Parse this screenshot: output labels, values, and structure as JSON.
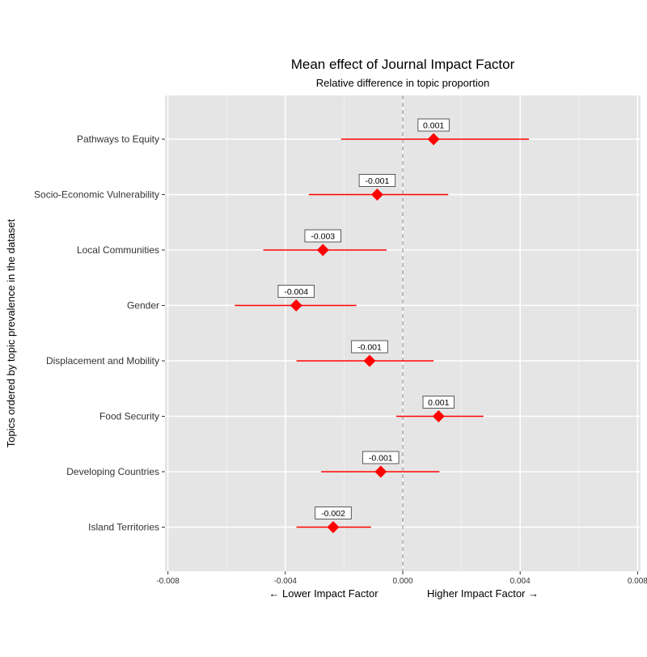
{
  "chart_data": {
    "type": "scatter",
    "title": "Mean effect of Journal Impact Factor",
    "subtitle": "Relative difference in topic proportion",
    "ylabel": "Topics ordered by topic prevalence in the dataset",
    "xlabel_left": "← Lower  Impact Factor",
    "xlabel_right": "Higher Impact Factor →",
    "xlim": [
      -0.0081,
      0.0081
    ],
    "xticks": [
      -0.008,
      -0.004,
      0.0,
      0.004,
      0.008
    ],
    "xtick_labels": [
      "-0.008",
      "-0.004",
      "0.000",
      "0.004",
      "0.008"
    ],
    "reference_line": 0.0,
    "grid": true,
    "marker_color": "#ff0000",
    "panel_color": "#e5e5e5",
    "points": [
      {
        "topic": "Pathways to Equity",
        "estimate": 0.00105,
        "lower": -0.0021,
        "upper": 0.0043,
        "label": "0.001"
      },
      {
        "topic": "Socio-Economic Vulnerability",
        "estimate": -0.00087,
        "lower": -0.0032,
        "upper": 0.00155,
        "label": "-0.001"
      },
      {
        "topic": "Local Communities",
        "estimate": -0.00272,
        "lower": -0.00475,
        "upper": -0.00055,
        "label": "-0.003"
      },
      {
        "topic": "Gender",
        "estimate": -0.00363,
        "lower": -0.00572,
        "upper": -0.00158,
        "label": "-0.004"
      },
      {
        "topic": "Displacement and Mobility",
        "estimate": -0.00113,
        "lower": -0.00362,
        "upper": 0.00105,
        "label": "-0.001"
      },
      {
        "topic": "Food Security",
        "estimate": 0.00122,
        "lower": -0.00022,
        "upper": 0.00275,
        "label": "0.001"
      },
      {
        "topic": "Developing Countries",
        "estimate": -0.00075,
        "lower": -0.00278,
        "upper": 0.00125,
        "label": "-0.001"
      },
      {
        "topic": "Island Territories",
        "estimate": -0.00237,
        "lower": -0.00362,
        "upper": -0.00108,
        "label": "-0.002"
      }
    ]
  }
}
